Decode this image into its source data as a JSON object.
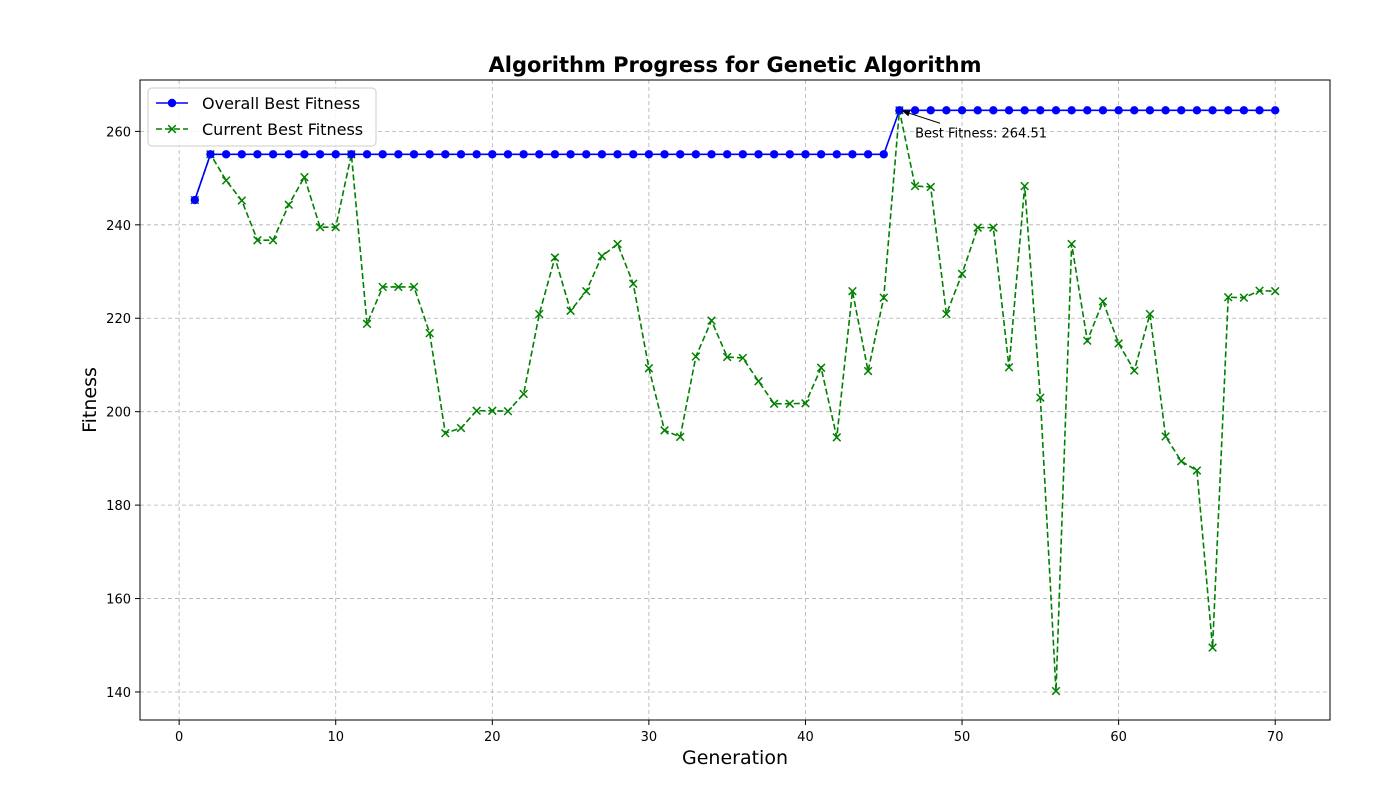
{
  "chart_data": {
    "type": "line",
    "title": "Algorithm Progress for Genetic Algorithm",
    "xlabel": "Generation",
    "ylabel": "Fitness",
    "xlim": [
      -2.5,
      73.5
    ],
    "ylim": [
      134,
      271
    ],
    "xticks": [
      0,
      10,
      20,
      30,
      40,
      50,
      60,
      70
    ],
    "yticks": [
      140,
      160,
      180,
      200,
      220,
      240,
      260
    ],
    "grid": true,
    "legend_position": "top-left",
    "x": [
      1,
      2,
      3,
      4,
      5,
      6,
      7,
      8,
      9,
      10,
      11,
      12,
      13,
      14,
      15,
      16,
      17,
      18,
      19,
      20,
      21,
      22,
      23,
      24,
      25,
      26,
      27,
      28,
      29,
      30,
      31,
      32,
      33,
      34,
      35,
      36,
      37,
      38,
      39,
      40,
      41,
      42,
      43,
      44,
      45,
      46,
      47,
      48,
      49,
      50,
      51,
      52,
      53,
      54,
      55,
      56,
      57,
      58,
      59,
      60,
      61,
      62,
      63,
      64,
      65,
      66,
      67,
      68,
      69,
      70
    ],
    "series": [
      {
        "name": "Overall Best Fitness",
        "color": "#0000ff",
        "marker": "circle",
        "line_style": "solid",
        "values": [
          245.3,
          255.1,
          255.1,
          255.1,
          255.1,
          255.1,
          255.1,
          255.1,
          255.1,
          255.1,
          255.1,
          255.1,
          255.1,
          255.1,
          255.1,
          255.1,
          255.1,
          255.1,
          255.1,
          255.1,
          255.1,
          255.1,
          255.1,
          255.1,
          255.1,
          255.1,
          255.1,
          255.1,
          255.1,
          255.1,
          255.1,
          255.1,
          255.1,
          255.1,
          255.1,
          255.1,
          255.1,
          255.1,
          255.1,
          255.1,
          255.1,
          255.1,
          255.1,
          255.1,
          255.1,
          264.51,
          264.51,
          264.51,
          264.51,
          264.51,
          264.51,
          264.51,
          264.51,
          264.51,
          264.51,
          264.51,
          264.51,
          264.51,
          264.51,
          264.51,
          264.51,
          264.51,
          264.51,
          264.51,
          264.51,
          264.51,
          264.51,
          264.51,
          264.51,
          264.51
        ]
      },
      {
        "name": "Current Best Fitness",
        "color": "#008000",
        "marker": "x",
        "line_style": "dashed",
        "values": [
          245.3,
          255.1,
          249.5,
          245.2,
          236.7,
          236.7,
          244.3,
          250.2,
          239.5,
          239.5,
          255.1,
          218.8,
          226.7,
          226.7,
          226.7,
          216.8,
          195.4,
          196.5,
          200.2,
          200.2,
          200.1,
          203.8,
          220.9,
          233.0,
          221.6,
          225.8,
          233.3,
          235.9,
          227.4,
          209.3,
          196.0,
          194.6,
          211.8,
          219.5,
          211.7,
          211.5,
          206.5,
          201.7,
          201.7,
          201.8,
          209.4,
          194.5,
          225.8,
          208.7,
          224.4,
          264.51,
          248.3,
          248.1,
          220.9,
          229.5,
          239.4,
          239.4,
          209.5,
          248.3,
          203.0,
          140.2,
          235.9,
          215.2,
          223.6,
          214.6,
          208.8,
          220.9,
          194.7,
          189.4,
          187.4,
          149.5,
          224.5,
          224.4,
          225.9,
          225.8
        ]
      }
    ],
    "annotation": {
      "text": "Best Fitness: 264.51",
      "point": [
        46,
        264.51
      ],
      "text_anchor": [
        47,
        259.6
      ]
    }
  }
}
